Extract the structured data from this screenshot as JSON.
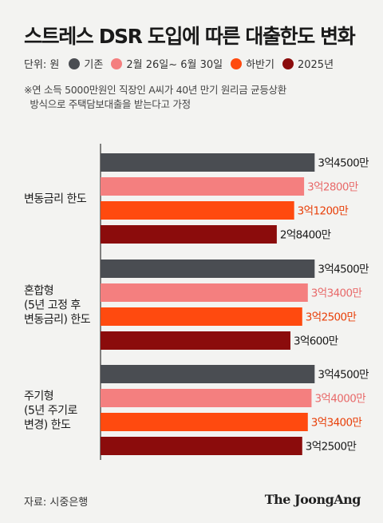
{
  "title": "스트레스 DSR 도입에 따른 대출한도 변화",
  "legend": {
    "unit": "단위: 원",
    "items": [
      {
        "label": "기존",
        "color": "#4a4d52"
      },
      {
        "label": "2월 26일~ 6월 30일",
        "color": "#f47f7f"
      },
      {
        "label": "하반기",
        "color": "#ff4a0f"
      },
      {
        "label": "2025년",
        "color": "#8b0c0c"
      }
    ]
  },
  "note": "※연 소득 5000만원인 직장인 A씨가 40년 만기 원리금 균등상환\n  방식으로 주택담보대출을 받는다고 가정",
  "source": "자료: 시중은행",
  "brand": "The JoongAng",
  "chart_data": {
    "type": "bar",
    "orientation": "horizontal",
    "categories": [
      "변동금리 한도",
      "혼합형\n(5년 고정 후\n변동금리) 한도",
      "주기형\n(5년 주기로\n변경) 한도"
    ],
    "series": [
      {
        "name": "기존",
        "color": "#4a4d52",
        "label_color": "#1a1a1a",
        "values": [
          345000000,
          345000000,
          345000000
        ],
        "labels": [
          "3억4500만",
          "3억4500만",
          "3억4500만"
        ]
      },
      {
        "name": "2월 26일~ 6월 30일",
        "color": "#f47f7f",
        "label_color": "#e86a6a",
        "values": [
          328000000,
          334000000,
          340000000
        ],
        "labels": [
          "3억2800만",
          "3억3400만",
          "3억4000만"
        ]
      },
      {
        "name": "하반기",
        "color": "#ff4a0f",
        "label_color": "#e8400a",
        "values": [
          312000000,
          325000000,
          334000000
        ],
        "labels": [
          "3억1200만",
          "3억2500만",
          "3억3400만"
        ]
      },
      {
        "name": "2025년",
        "color": "#8b0c0c",
        "label_color": "#1a1a1a",
        "values": [
          284000000,
          306000000,
          325000000
        ],
        "labels": [
          "2억8400만",
          "3억600만",
          "3억2500만"
        ]
      }
    ],
    "xlim": [
      0,
      450000000
    ],
    "grid": false
  }
}
